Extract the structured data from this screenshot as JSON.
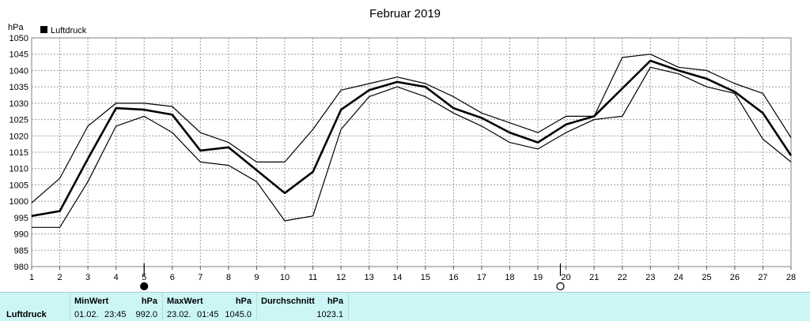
{
  "chart_data": {
    "type": "line",
    "title": "Februar 2019",
    "ylabel": "hPa",
    "ylim": [
      980,
      1050
    ],
    "yticks": [
      980,
      985,
      990,
      995,
      1000,
      1005,
      1010,
      1015,
      1020,
      1025,
      1030,
      1035,
      1040,
      1045,
      1050
    ],
    "x": [
      1,
      2,
      3,
      4,
      5,
      6,
      7,
      8,
      9,
      10,
      11,
      12,
      13,
      14,
      15,
      16,
      17,
      18,
      19,
      20,
      21,
      22,
      23,
      24,
      25,
      26,
      27,
      28
    ],
    "grid": true,
    "legend": {
      "label": "Luftdruck",
      "position": "top-left"
    },
    "series": [
      {
        "role": "max",
        "values": [
          999.5,
          1007,
          1023,
          1030,
          1030,
          1029,
          1021,
          1018,
          1012,
          1012,
          1022,
          1034,
          1036,
          1038,
          1036,
          1032,
          1027,
          1024,
          1021,
          1026,
          1026,
          1044,
          1045,
          1041,
          1040,
          1036,
          1033,
          1019.5
        ]
      },
      {
        "name": "Luftdruck",
        "role": "mean",
        "values": [
          995.5,
          997,
          1013,
          1028.5,
          1028,
          1026.5,
          1015.5,
          1016.5,
          1009.5,
          1002.5,
          1009,
          1028,
          1034,
          1036.5,
          1035,
          1028.5,
          1025.5,
          1021,
          1018,
          1023.5,
          1026,
          1034.5,
          1043,
          1040,
          1037.5,
          1033.5,
          1027,
          1014
        ]
      },
      {
        "role": "min",
        "values": [
          992,
          992,
          1006,
          1023,
          1026,
          1021,
          1012,
          1011,
          1006,
          994,
          995.5,
          1022,
          1032,
          1035,
          1032,
          1027,
          1023,
          1018,
          1016,
          1021,
          1025,
          1026,
          1041,
          1039,
          1035,
          1033,
          1019,
          1012
        ]
      }
    ],
    "moon_phases": [
      {
        "day": 5,
        "phase": "new-moon"
      },
      {
        "day": 19.8,
        "phase": "full-moon"
      }
    ]
  },
  "stats": {
    "label": "Luftdruck",
    "min": {
      "header": "MinWert",
      "unit": "hPa",
      "date": "01.02.",
      "time": "23:45",
      "value": "992.0"
    },
    "max": {
      "header": "MaxWert",
      "unit": "hPa",
      "date": "23.02.",
      "time": "01:45",
      "value": "1045.0"
    },
    "avg": {
      "header": "Durchschnitt",
      "unit": "hPa",
      "value": "1023.1"
    }
  }
}
